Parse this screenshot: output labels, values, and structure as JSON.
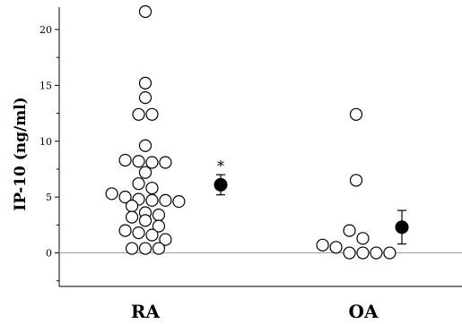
{
  "chart_data": {
    "type": "scatter",
    "ylabel": "IP-10 (ng/ml)",
    "ylim": [
      -3,
      22
    ],
    "yticks": [
      0,
      5,
      10,
      15,
      20
    ],
    "reference_line": 0,
    "categories": [
      "RA",
      "OA"
    ],
    "groups": [
      {
        "category": "RA",
        "points": [
          21.6,
          15.2,
          13.9,
          12.4,
          12.4,
          9.6,
          8.3,
          8.1,
          8.1,
          8.2,
          7.2,
          6.2,
          5.8,
          5.3,
          5.0,
          4.8,
          4.7,
          4.7,
          4.6,
          4.2,
          3.6,
          3.4,
          3.2,
          2.9,
          2.4,
          2.0,
          1.8,
          1.6,
          1.2,
          0.4,
          0.4,
          0.4
        ],
        "mean": 6.1,
        "error": [
          5.2,
          7.0
        ],
        "annotation": "*"
      },
      {
        "category": "OA",
        "points": [
          12.4,
          6.5,
          2.0,
          1.3,
          0.7,
          0.5,
          0.0,
          0.0,
          0.0,
          0.0
        ],
        "mean": 2.3,
        "error": [
          0.8,
          3.8
        ]
      }
    ],
    "colors": {
      "points": "#ffffff",
      "point_stroke": "#000000",
      "mean": "#000000",
      "reference_line": "#999999"
    }
  }
}
